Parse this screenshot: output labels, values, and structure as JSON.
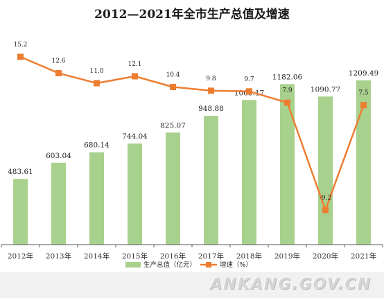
{
  "chart_data": {
    "type": "bar",
    "title": "2012—2021年全市生产总值及增速",
    "categories": [
      "2012年",
      "2013年",
      "2014年",
      "2015年",
      "2016年",
      "2017年",
      "2018年",
      "2019年",
      "2020年",
      "2021年"
    ],
    "series": [
      {
        "name": "生产总值（亿元）",
        "type": "bar",
        "color": "#a9d18e",
        "values": [
          483.61,
          603.04,
          680.14,
          744.04,
          825.07,
          948.88,
          1065.17,
          1182.06,
          1090.77,
          1209.49
        ],
        "labels": [
          "483.61",
          "603.04",
          "680.14",
          "744.04",
          "825.07",
          "948.88",
          "1065.17",
          "1182.06",
          "1090.77",
          "1209.49"
        ]
      },
      {
        "name": "增速（%）",
        "type": "line",
        "color": "#ed7d31",
        "values": [
          15.2,
          12.6,
          11.0,
          12.1,
          10.4,
          9.8,
          9.7,
          7.9,
          -9.2,
          7.5
        ],
        "labels": [
          "15.2",
          "12.6",
          "11.0",
          "12.1",
          "10.4",
          "9.8",
          "9.7",
          "7.9",
          "-9.2",
          "7.5"
        ]
      }
    ],
    "legend_position": "bottom-center",
    "grid": false
  },
  "watermark": "ANKANG.GOV.CN"
}
